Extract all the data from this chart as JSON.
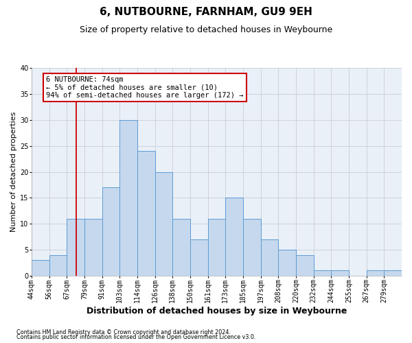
{
  "title": "6, NUTBOURNE, FARNHAM, GU9 9EH",
  "subtitle": "Size of property relative to detached houses in Weybourne",
  "xlabel": "Distribution of detached houses by size in Weybourne",
  "ylabel": "Number of detached properties",
  "footnote1": "Contains HM Land Registry data © Crown copyright and database right 2024.",
  "footnote2": "Contains public sector information licensed under the Open Government Licence v3.0.",
  "bin_labels": [
    "44sqm",
    "56sqm",
    "67sqm",
    "79sqm",
    "91sqm",
    "103sqm",
    "114sqm",
    "126sqm",
    "138sqm",
    "150sqm",
    "161sqm",
    "173sqm",
    "185sqm",
    "197sqm",
    "208sqm",
    "220sqm",
    "232sqm",
    "244sqm",
    "255sqm",
    "267sqm",
    "279sqm"
  ],
  "bar_values": [
    3,
    4,
    11,
    11,
    17,
    30,
    24,
    20,
    11,
    7,
    11,
    15,
    11,
    7,
    5,
    4,
    1,
    1,
    0,
    1,
    1
  ],
  "bar_color": "#c5d8ed",
  "bar_edge_color": "#5b9bd5",
  "vline_bin": 2.55,
  "ylim": [
    0,
    40
  ],
  "yticks": [
    0,
    5,
    10,
    15,
    20,
    25,
    30,
    35,
    40
  ],
  "grid_color": "#c8cdd6",
  "annotation_text": "6 NUTBOURNE: 74sqm\n← 5% of detached houses are smaller (10)\n94% of semi-detached houses are larger (172) →",
  "annotation_box_color": "#ffffff",
  "annotation_box_edge_color": "#cc0000",
  "vline_color": "#cc0000",
  "bg_color": "#eaf0f8",
  "title_fontsize": 11,
  "subtitle_fontsize": 9,
  "ylabel_fontsize": 8,
  "xlabel_fontsize": 9,
  "tick_fontsize": 7,
  "annot_fontsize": 7.5
}
